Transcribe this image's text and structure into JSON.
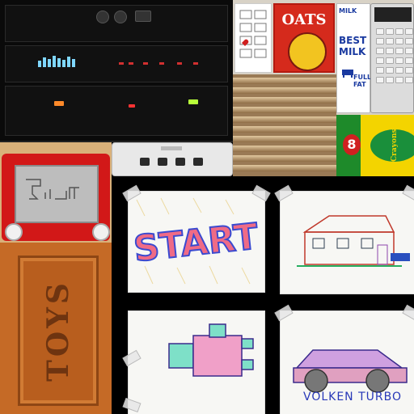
{
  "stereo": {
    "display": "",
    "brand": ""
  },
  "pantry": {
    "oats_title": "OATS",
    "milk_top": "MILK",
    "milk_main": "BEST\nMILK",
    "milk_fat": "FULL\nFAT",
    "crayons_number": "8",
    "crayons_brand": "Crayons"
  },
  "toychest": {
    "label": "TOYS"
  },
  "drawings": {
    "start": {
      "label": "START"
    },
    "car": {
      "caption": "VOLKEN TURBO"
    }
  },
  "colors": {
    "start_fill": "#ef6b86",
    "start_outline": "#3a4ad0",
    "etch_red": "#d21818"
  }
}
